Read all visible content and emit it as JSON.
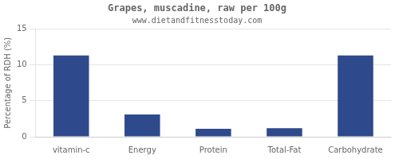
{
  "chart_data": {
    "type": "bar",
    "title": "Grapes, muscadine, raw per 100g",
    "subtitle": "www.dietandfitnesstoday.com",
    "categories": [
      "vitamin-c",
      "Energy",
      "Protein",
      "Total-Fat",
      "Carbohydrate"
    ],
    "values": [
      11.3,
      3.1,
      1.1,
      1.2,
      11.3
    ],
    "color": "#2e4a8c",
    "ylabel": "Percentage of RDH (%)",
    "ylim": [
      0,
      15
    ],
    "yticks": [
      0,
      5,
      10,
      15
    ],
    "grid": true
  }
}
